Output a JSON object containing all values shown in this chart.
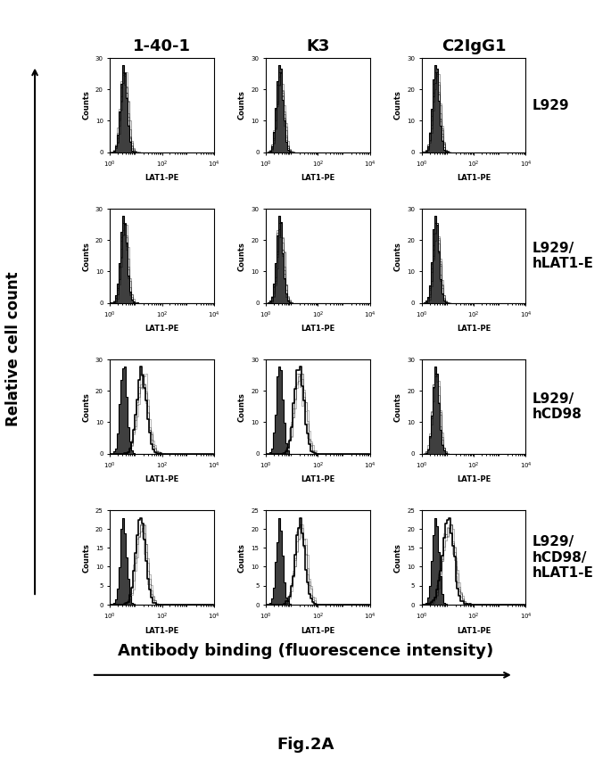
{
  "col_labels": [
    "1-40-1",
    "K3",
    "C2IgG1"
  ],
  "row_labels": [
    "L929",
    "L929/\nhLAT1-E",
    "L929/\nhCD98",
    "L929/\nhCD98/\nhLAT1-E"
  ],
  "xlabel": "LAT1-PE",
  "ylabel_inner": "Counts",
  "x_axis_label": "Antibody binding (fluorescence intensity)",
  "y_axis_label": "Relative cell count",
  "figure_label": "Fig.2A",
  "row_ylims": [
    30,
    30,
    30,
    25
  ],
  "row_yticks": [
    [
      0,
      10,
      20,
      30
    ],
    [
      0,
      10,
      20,
      30
    ],
    [
      0,
      10,
      20,
      30
    ],
    [
      0,
      5,
      10,
      15,
      20,
      25
    ]
  ]
}
